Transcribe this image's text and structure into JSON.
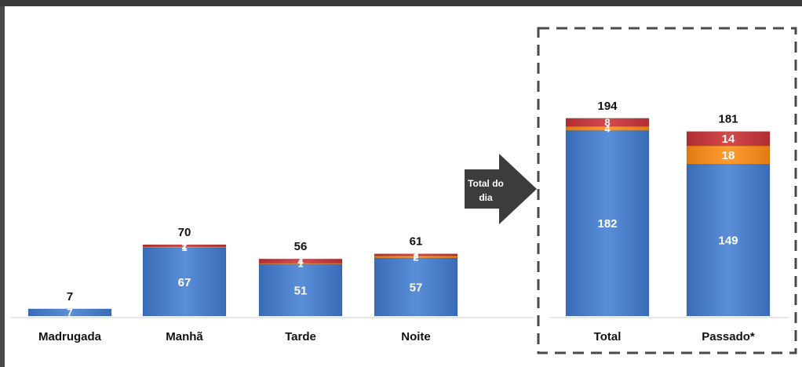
{
  "chart_data": {
    "type": "bar",
    "stacked": true,
    "categories": [
      "Madrugada",
      "Manhã",
      "Tarde",
      "Noite",
      "Total",
      "Passado*"
    ],
    "series": [
      {
        "values": [
          7,
          67,
          51,
          57,
          182,
          149
        ],
        "color": "#4a7cc6"
      },
      {
        "values": [
          0,
          1,
          1,
          2,
          4,
          18
        ],
        "color": "#f28a1e"
      },
      {
        "values": [
          0,
          2,
          4,
          2,
          8,
          14
        ],
        "color": "#c4373a"
      }
    ],
    "totals": [
      7,
      70,
      56,
      61,
      194,
      181
    ],
    "segment_labels": [
      [
        "7"
      ],
      [
        "67",
        "1",
        "2"
      ],
      [
        "51",
        "1",
        "4"
      ],
      [
        "57",
        "2",
        "2"
      ],
      [
        "182",
        "4",
        "8"
      ],
      [
        "149",
        "18",
        "14"
      ]
    ],
    "arrow_label": [
      "Total do",
      "dia"
    ],
    "highlight_box_categories": [
      "Total",
      "Passado*"
    ],
    "grid": false,
    "legend": "none"
  }
}
